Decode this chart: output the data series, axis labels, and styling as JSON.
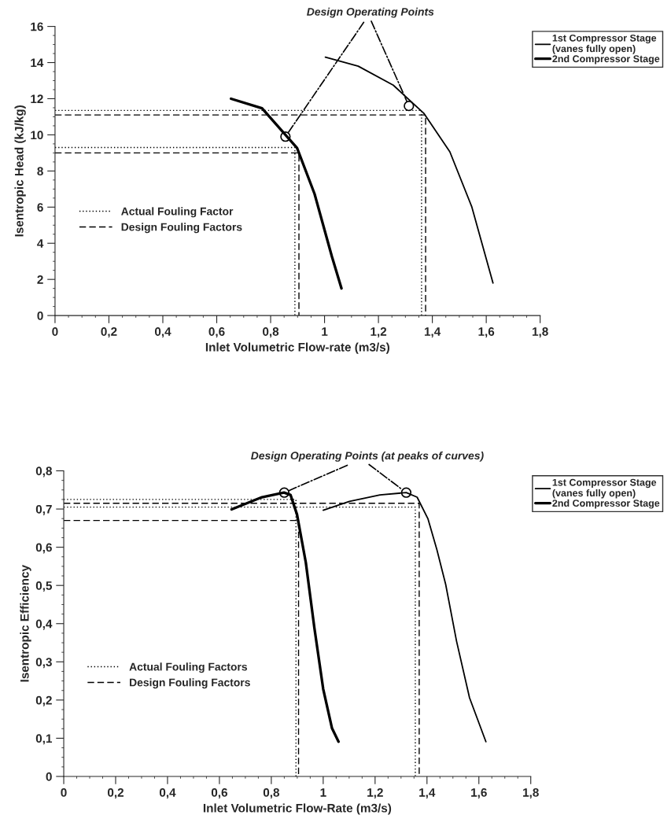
{
  "chart_data": [
    {
      "type": "line",
      "xlabel": "Inlet Volumetric Flow-rate (m3/s)",
      "ylabel": "Isentropic Head (kJ/kg)",
      "xlim": [
        0,
        1.8
      ],
      "ylim": [
        0,
        16
      ],
      "xticks": [
        0,
        {
          "value": 0.2,
          "label": "0,2"
        },
        {
          "value": 0.4,
          "label": "0,4"
        },
        {
          "value": 0.6,
          "label": "0,6"
        },
        {
          "value": 0.8,
          "label": "0,8"
        },
        1,
        {
          "value": 1.2,
          "label": "1,2"
        },
        {
          "value": 1.4,
          "label": "1,4"
        },
        {
          "value": 1.6,
          "label": "1,6"
        },
        {
          "value": 1.8,
          "label": "1,8"
        }
      ],
      "yticks": [
        0,
        2,
        4,
        6,
        8,
        10,
        12,
        14,
        16
      ],
      "legend": "top right",
      "grid": false,
      "annotations": [
        {
          "text": "Design Operating Points",
          "x": 0.855,
          "y": 9.9
        }
      ],
      "series": [
        {
          "name": "1st Compressor Stage\n(vanes fully open)",
          "color": "#000000",
          "line_style": "solid",
          "x": [
            1.003,
            1.125,
            1.255,
            1.368,
            1.465,
            1.546,
            1.625
          ],
          "values": [
            14.3,
            13.8,
            12.75,
            11.2,
            9.06,
            6.03,
            1.8
          ]
        },
        {
          "name": "2nd Compressor Stage",
          "color": "#000000",
          "line_style": "solid",
          "x": [
            0.653,
            0.768,
            0.898,
            0.963,
            1.027,
            1.063
          ],
          "values": [
            12.0,
            11.47,
            9.27,
            6.73,
            3.28,
            1.5
          ]
        },
        {
          "name": "Actual Fouling Factor",
          "color": "#000000",
          "line_style": "dotted",
          "x": [
            0,
            0.89,
            0.89
          ],
          "values": [
            9.3,
            9.3,
            0
          ]
        },
        {
          "color": "#000000",
          "line_style": "dotted",
          "x": [
            0,
            1.36,
            1.36
          ],
          "values": [
            11.35,
            11.35,
            0
          ]
        },
        {
          "name": "Design Fouling Factors",
          "color": "#000000",
          "line_style": "dashed",
          "x": [
            0,
            0.905,
            0.905
          ],
          "values": [
            9.0,
            9.0,
            0
          ]
        },
        {
          "color": "#000000",
          "line_style": "dashed",
          "x": [
            0,
            1.375,
            1.375
          ],
          "values": [
            11.1,
            11.1,
            0
          ]
        },
        {
          "type": "scatter",
          "color": "#000000",
          "marker": "circle",
          "x": [
            0.855,
            1.313
          ],
          "values": [
            9.9,
            11.6
          ]
        }
      ]
    },
    {
      "type": "line",
      "xlabel": "Inlet Volumetric Flow-Rate (m3/s)",
      "ylabel": "Isentropic Efficiency",
      "xlim": [
        0,
        1.8
      ],
      "ylim": [
        0,
        0.8
      ],
      "xticks": [
        0,
        {
          "value": 0.2,
          "label": "0,2"
        },
        {
          "value": 0.4,
          "label": "0,4"
        },
        {
          "value": 0.6,
          "label": "0,6"
        },
        {
          "value": 0.8,
          "label": "0,8"
        },
        1,
        {
          "value": 1.2,
          "label": "1,2"
        },
        {
          "value": 1.4,
          "label": "1,4"
        },
        {
          "value": 1.6,
          "label": "1,6"
        },
        {
          "value": 1.8,
          "label": "1,8"
        }
      ],
      "yticks": [
        0,
        {
          "value": 0.1,
          "label": "0,1"
        },
        {
          "value": 0.2,
          "label": "0,2"
        },
        {
          "value": 0.3,
          "label": "0,3"
        },
        {
          "value": 0.4,
          "label": "0,4"
        },
        {
          "value": 0.5,
          "label": "0,5"
        },
        {
          "value": 0.6,
          "label": "0,6"
        },
        {
          "value": 0.7,
          "label": "0,7"
        },
        {
          "value": 0.8,
          "label": "0,8"
        }
      ],
      "legend": "top right",
      "grid": false,
      "annotations": [
        {
          "text": "Design Operating Points (at peaks of curves)",
          "x": 0.85,
          "y": 0.743
        }
      ],
      "series": [
        {
          "name": "1st Compressor Stage\n(vanes fully open)",
          "color": "#000000",
          "line_style": "solid",
          "x": [
            1.0,
            1.101,
            1.219,
            1.32,
            1.362,
            1.404,
            1.438,
            1.472,
            1.514,
            1.564,
            1.627
          ],
          "values": [
            0.697,
            0.72,
            0.737,
            0.743,
            0.731,
            0.674,
            0.594,
            0.503,
            0.354,
            0.206,
            0.091
          ]
        },
        {
          "name": "2nd Compressor Stage",
          "color": "#000000",
          "line_style": "solid",
          "x": [
            0.647,
            0.764,
            0.849,
            0.874,
            0.899,
            0.933,
            0.966,
            1.0,
            1.034,
            1.059
          ],
          "values": [
            0.699,
            0.731,
            0.743,
            0.737,
            0.686,
            0.56,
            0.389,
            0.229,
            0.126,
            0.091
          ]
        },
        {
          "name": "Actual Fouling Factors",
          "color": "#000000",
          "line_style": "dotted",
          "x": [
            0,
            0.895,
            0.895
          ],
          "values": [
            0.725,
            0.725,
            0
          ]
        },
        {
          "color": "#000000",
          "line_style": "dotted",
          "x": [
            0,
            1.355,
            1.355
          ],
          "values": [
            0.705,
            0.705,
            0
          ]
        },
        {
          "name": "Design Fouling Factors",
          "color": "#000000",
          "line_style": "dashed",
          "x": [
            0,
            0.905,
            0.905
          ],
          "values": [
            0.67,
            0.67,
            0
          ]
        },
        {
          "color": "#000000",
          "line_style": "dashed",
          "x": [
            0,
            1.37,
            1.37
          ],
          "values": [
            0.715,
            0.715,
            0
          ]
        },
        {
          "type": "scatter",
          "color": "#000000",
          "marker": "circle",
          "x": [
            0.85,
            1.32
          ],
          "values": [
            0.743,
            0.743
          ]
        }
      ]
    }
  ]
}
